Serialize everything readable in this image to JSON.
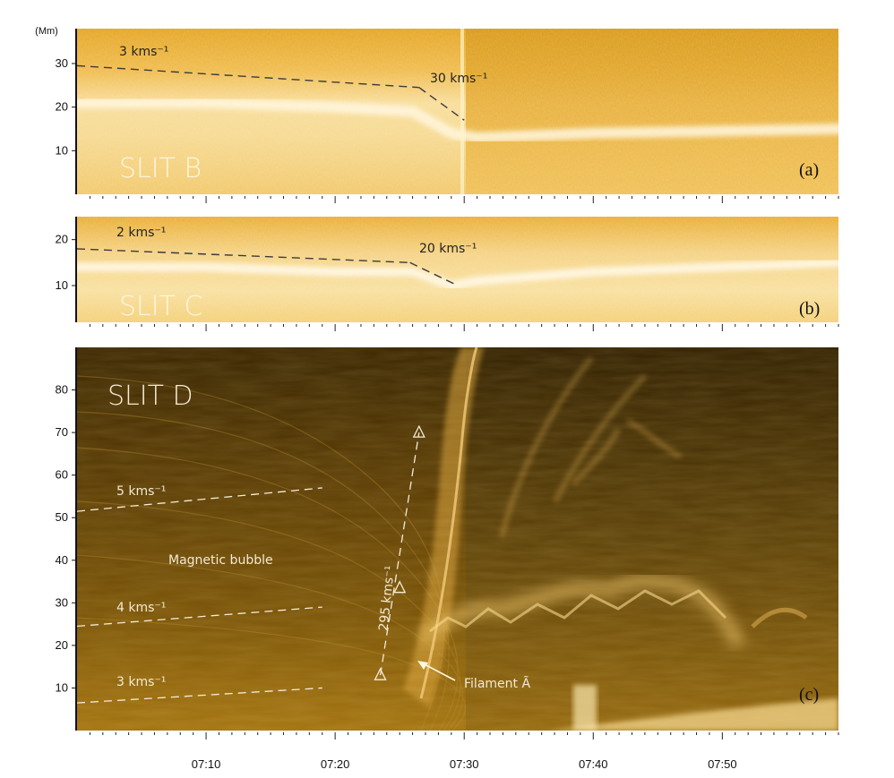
{
  "figure": {
    "x_ticks": [
      "07:10",
      "07:20",
      "07:30",
      "07:40",
      "07:50"
    ]
  },
  "chart_data": [
    {
      "id": "a",
      "type": "heatmap",
      "panel_label": "(a)",
      "slit_label": "SLIT B",
      "ylabel": "(Mm)",
      "x_range": [
        "07:00",
        "07:59"
      ],
      "ylim": [
        0,
        38
      ],
      "y_ticks": [
        10,
        20,
        30
      ],
      "palette": "gold",
      "bright_band": [
        [
          0,
          21
        ],
        [
          10,
          21
        ],
        [
          20,
          20
        ],
        [
          26,
          19
        ],
        [
          29,
          14
        ],
        [
          31,
          13
        ],
        [
          40,
          14
        ],
        [
          59,
          15
        ]
      ],
      "velocity_tracks": [
        {
          "label": "3 kms⁻¹",
          "points": [
            [
              0,
              29.5
            ],
            [
              26.5,
              24.5
            ]
          ]
        },
        {
          "label": "30 kms⁻¹",
          "points": [
            [
              26.5,
              24.5
            ],
            [
              30,
              17
            ]
          ]
        }
      ]
    },
    {
      "id": "b",
      "type": "heatmap",
      "panel_label": "(b)",
      "slit_label": "SLIT C",
      "x_range": [
        "07:00",
        "07:59"
      ],
      "ylim": [
        2,
        25
      ],
      "y_ticks": [
        10,
        20
      ],
      "palette": "gold",
      "bright_band": [
        [
          0,
          14
        ],
        [
          10,
          14
        ],
        [
          20,
          13
        ],
        [
          26,
          13
        ],
        [
          29,
          10
        ],
        [
          31,
          11
        ],
        [
          40,
          13
        ],
        [
          59,
          15
        ]
      ],
      "velocity_tracks": [
        {
          "label": "2 kms⁻¹",
          "points": [
            [
              0,
              18
            ],
            [
              25.8,
              15
            ]
          ]
        },
        {
          "label": "20 kms⁻¹",
          "points": [
            [
              25.8,
              15
            ],
            [
              29.5,
              10
            ]
          ]
        }
      ]
    },
    {
      "id": "c",
      "type": "heatmap",
      "panel_label": "(c)",
      "slit_label": "SLIT D",
      "x_range": [
        "07:00",
        "07:59"
      ],
      "ylim": [
        0,
        90
      ],
      "y_ticks": [
        10,
        20,
        30,
        40,
        50,
        60,
        70,
        80
      ],
      "palette": "dark-gold",
      "velocity_tracks": [
        {
          "label": "5 kms⁻¹",
          "points": [
            [
              0,
              51.5
            ],
            [
              19,
              57
            ]
          ]
        },
        {
          "label": "4 kms⁻¹",
          "points": [
            [
              0,
              24.5
            ],
            [
              19,
              29
            ]
          ]
        },
        {
          "label": "3 kms⁻¹",
          "points": [
            [
              0,
              6.5
            ],
            [
              19,
              10
            ]
          ]
        },
        {
          "label": "295 kms⁻¹",
          "points": [
            [
              23.5,
              13
            ],
            [
              26.5,
              70
            ]
          ]
        }
      ],
      "markers": [
        [
          23.5,
          13
        ],
        [
          25,
          33.5
        ],
        [
          26.5,
          70
        ]
      ],
      "annotations": {
        "bubble": "Magnetic bubble",
        "filament": "Filament Ã"
      }
    }
  ]
}
